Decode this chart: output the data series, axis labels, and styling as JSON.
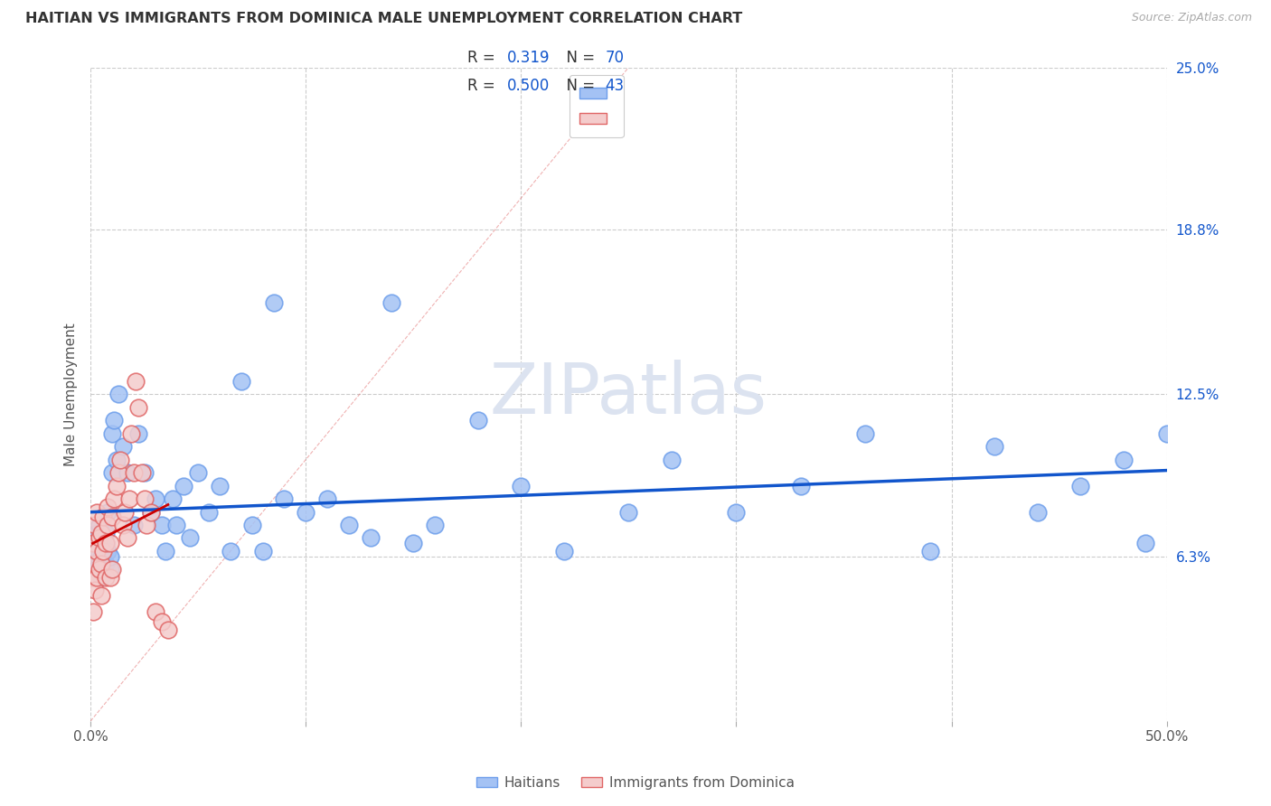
{
  "title": "HAITIAN VS IMMIGRANTS FROM DOMINICA MALE UNEMPLOYMENT CORRELATION CHART",
  "source": "Source: ZipAtlas.com",
  "ylabel": "Male Unemployment",
  "xlim": [
    0,
    0.5
  ],
  "ylim": [
    0,
    0.25
  ],
  "xtick_vals": [
    0.0,
    0.1,
    0.2,
    0.3,
    0.4,
    0.5
  ],
  "xticklabels": [
    "0.0%",
    "",
    "",
    "",
    "",
    "50.0%"
  ],
  "ytick_labels_right": [
    "6.3%",
    "12.5%",
    "18.8%",
    "25.0%"
  ],
  "ytick_vals_right": [
    0.063,
    0.125,
    0.188,
    0.25
  ],
  "haitians_R": 0.319,
  "haitians_N": 70,
  "dominica_R": 0.5,
  "dominica_N": 43,
  "blue_color": "#a4c2f4",
  "pink_color": "#f4cccc",
  "blue_edge_color": "#6d9eeb",
  "pink_edge_color": "#e06666",
  "blue_line_color": "#1155cc",
  "pink_line_color": "#cc0000",
  "ref_line_color": "#e06666",
  "grid_color": "#cccccc",
  "watermark_color": "#dce3f0",
  "legend_label1": "Haitians",
  "legend_label2": "Immigrants from Dominica",
  "haitians_x": [
    0.001,
    0.002,
    0.002,
    0.003,
    0.003,
    0.003,
    0.004,
    0.004,
    0.005,
    0.005,
    0.005,
    0.006,
    0.006,
    0.006,
    0.007,
    0.007,
    0.007,
    0.008,
    0.008,
    0.009,
    0.009,
    0.01,
    0.01,
    0.011,
    0.012,
    0.013,
    0.015,
    0.017,
    0.02,
    0.022,
    0.025,
    0.028,
    0.03,
    0.033,
    0.035,
    0.038,
    0.04,
    0.043,
    0.046,
    0.05,
    0.055,
    0.06,
    0.065,
    0.07,
    0.075,
    0.08,
    0.085,
    0.09,
    0.1,
    0.11,
    0.12,
    0.13,
    0.14,
    0.15,
    0.16,
    0.18,
    0.2,
    0.22,
    0.25,
    0.27,
    0.3,
    0.33,
    0.36,
    0.39,
    0.42,
    0.44,
    0.46,
    0.48,
    0.49,
    0.5
  ],
  "haitians_y": [
    0.068,
    0.062,
    0.07,
    0.058,
    0.072,
    0.065,
    0.06,
    0.075,
    0.055,
    0.068,
    0.063,
    0.058,
    0.07,
    0.065,
    0.06,
    0.072,
    0.068,
    0.08,
    0.065,
    0.058,
    0.063,
    0.11,
    0.095,
    0.115,
    0.1,
    0.125,
    0.105,
    0.095,
    0.075,
    0.11,
    0.095,
    0.08,
    0.085,
    0.075,
    0.065,
    0.085,
    0.075,
    0.09,
    0.07,
    0.095,
    0.08,
    0.09,
    0.065,
    0.13,
    0.075,
    0.065,
    0.16,
    0.085,
    0.08,
    0.085,
    0.075,
    0.07,
    0.16,
    0.068,
    0.075,
    0.115,
    0.09,
    0.065,
    0.08,
    0.1,
    0.08,
    0.09,
    0.11,
    0.065,
    0.105,
    0.08,
    0.09,
    0.1,
    0.068,
    0.11
  ],
  "dominica_x": [
    0.001,
    0.001,
    0.001,
    0.002,
    0.002,
    0.002,
    0.003,
    0.003,
    0.003,
    0.004,
    0.004,
    0.005,
    0.005,
    0.005,
    0.006,
    0.006,
    0.007,
    0.007,
    0.008,
    0.008,
    0.009,
    0.009,
    0.01,
    0.01,
    0.011,
    0.012,
    0.013,
    0.014,
    0.015,
    0.016,
    0.017,
    0.018,
    0.019,
    0.02,
    0.021,
    0.022,
    0.024,
    0.025,
    0.026,
    0.028,
    0.03,
    0.033,
    0.036
  ],
  "dominica_y": [
    0.068,
    0.055,
    0.042,
    0.06,
    0.075,
    0.05,
    0.065,
    0.08,
    0.055,
    0.07,
    0.058,
    0.072,
    0.06,
    0.048,
    0.065,
    0.078,
    0.055,
    0.068,
    0.075,
    0.082,
    0.055,
    0.068,
    0.058,
    0.078,
    0.085,
    0.09,
    0.095,
    0.1,
    0.075,
    0.08,
    0.07,
    0.085,
    0.11,
    0.095,
    0.13,
    0.12,
    0.095,
    0.085,
    0.075,
    0.08,
    0.042,
    0.038,
    0.035
  ]
}
